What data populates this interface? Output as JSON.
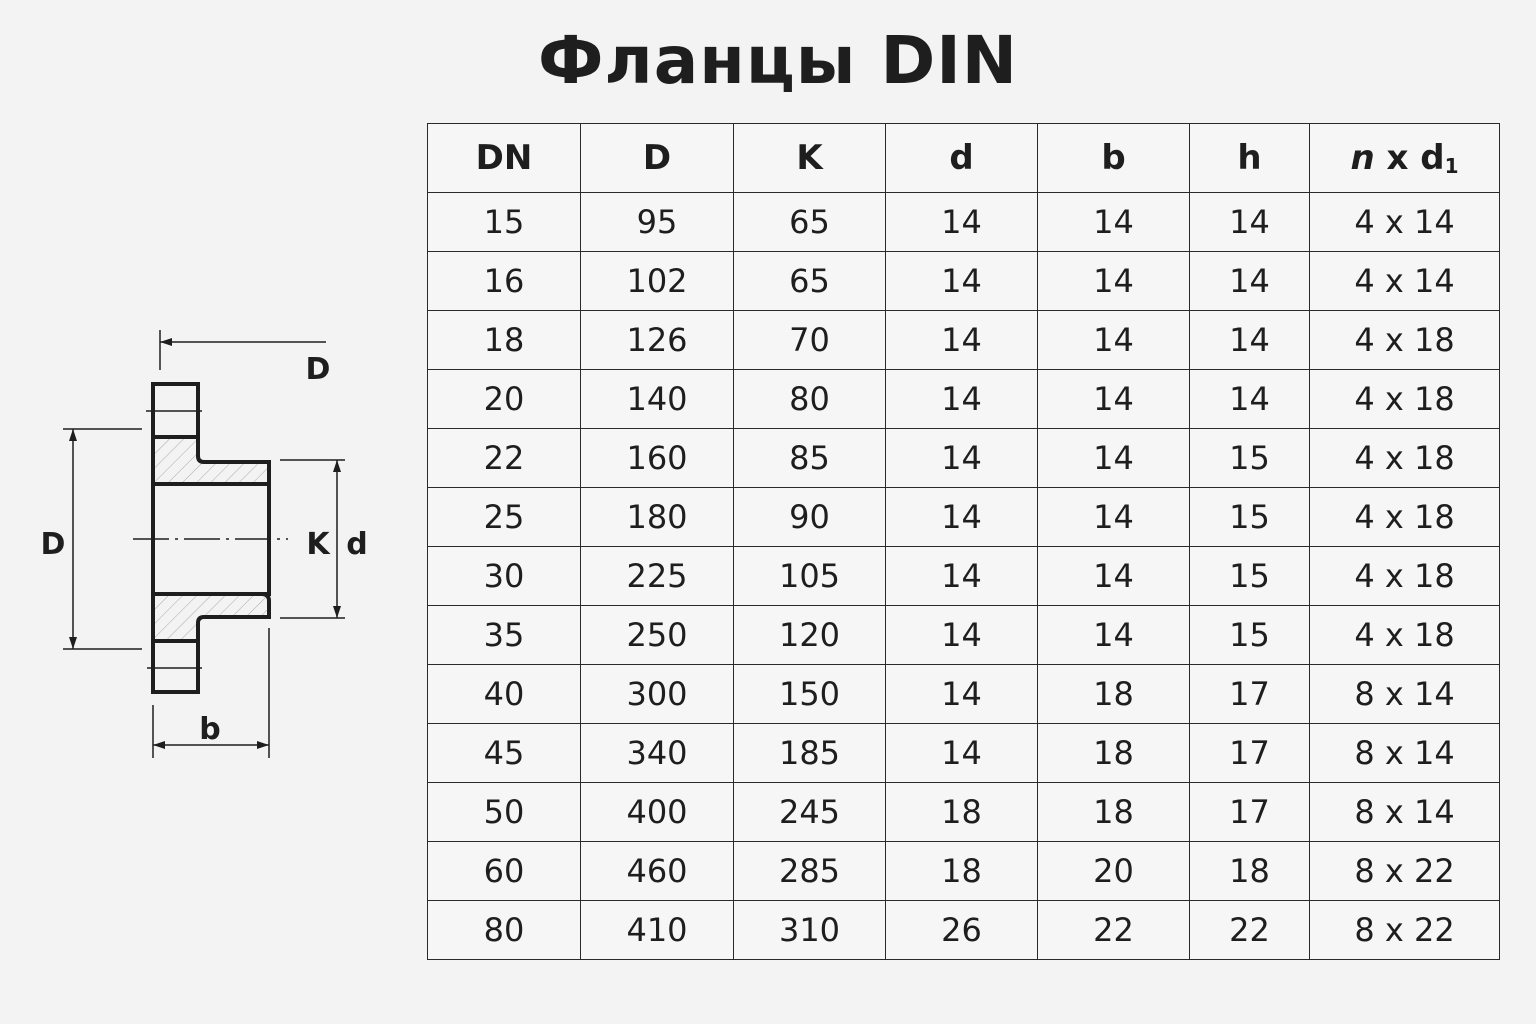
{
  "title": "Фланцы DIN",
  "diagram": {
    "labels": {
      "outer_diameter_top": "D",
      "outer_diameter_left": "D",
      "bolt_circle": "K",
      "bore": "d",
      "thickness": "b"
    }
  },
  "table": {
    "headers": [
      "DN",
      "D",
      "K",
      "d",
      "b",
      "h"
    ],
    "last_header": {
      "n": "n",
      "x": "x",
      "d": "d",
      "sub": "1"
    },
    "rows": [
      [
        "15",
        "95",
        "65",
        "14",
        "14",
        "14",
        "4 x 14"
      ],
      [
        "16",
        "102",
        "65",
        "14",
        "14",
        "14",
        "4 x 14"
      ],
      [
        "18",
        "126",
        "70",
        "14",
        "14",
        "14",
        "4 x 18"
      ],
      [
        "20",
        "140",
        "80",
        "14",
        "14",
        "14",
        "4 x 18"
      ],
      [
        "22",
        "160",
        "85",
        "14",
        "14",
        "15",
        "4 x 18"
      ],
      [
        "25",
        "180",
        "90",
        "14",
        "14",
        "15",
        "4 x 18"
      ],
      [
        "30",
        "225",
        "105",
        "14",
        "14",
        "15",
        "4 x 18"
      ],
      [
        "35",
        "250",
        "120",
        "14",
        "14",
        "15",
        "4 x 18"
      ],
      [
        "40",
        "300",
        "150",
        "14",
        "18",
        "17",
        "8 x 14"
      ],
      [
        "45",
        "340",
        "185",
        "14",
        "18",
        "17",
        "8 x 14"
      ],
      [
        "50",
        "400",
        "245",
        "18",
        "18",
        "17",
        "8 x 14"
      ],
      [
        "60",
        "460",
        "285",
        "18",
        "20",
        "18",
        "8 x 22"
      ],
      [
        "80",
        "410",
        "310",
        "26",
        "22",
        "22",
        "8 x 22"
      ]
    ]
  }
}
